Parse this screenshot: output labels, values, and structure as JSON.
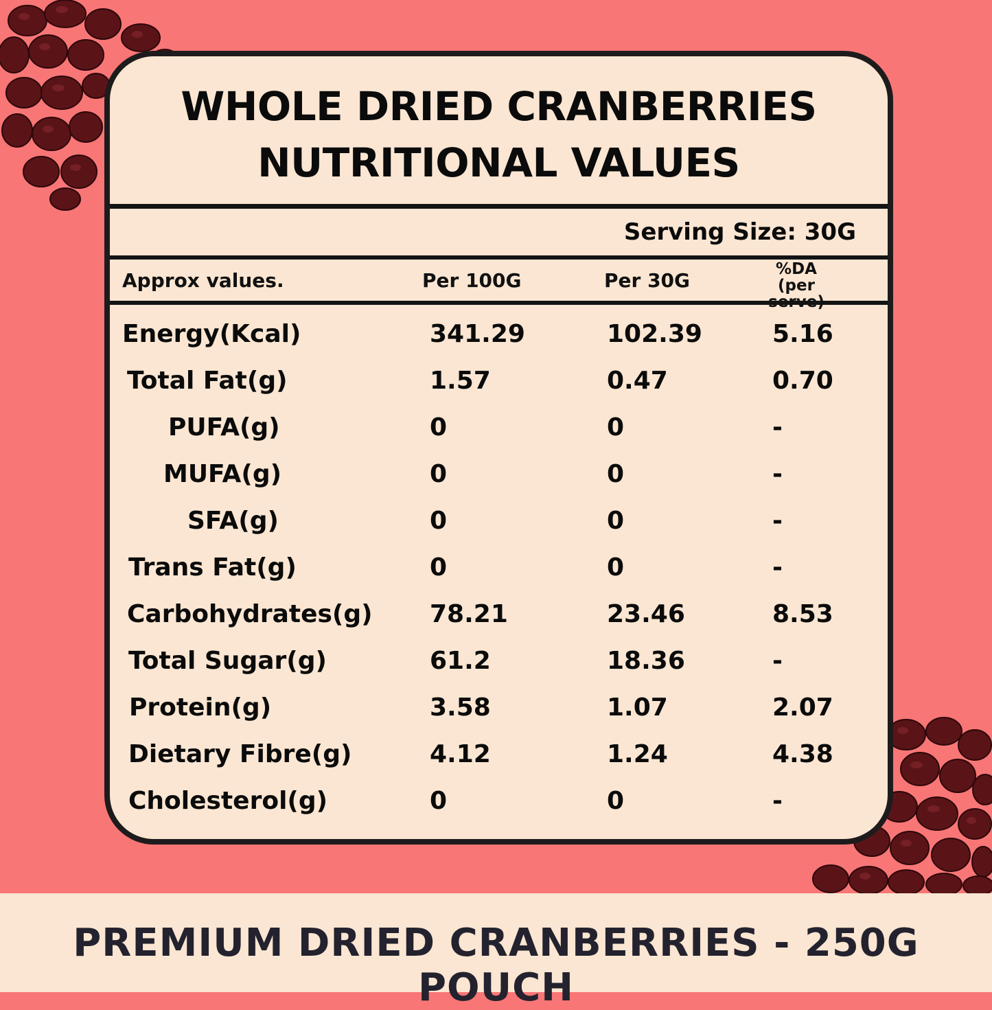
{
  "card": {
    "title_line1": "WHOLE DRIED CRANBERRIES",
    "title_line2": "NUTRITIONAL VALUES",
    "serving_size": "Serving Size: 30G",
    "columns": {
      "label": "Approx values.",
      "per100": "Per 100G",
      "per30": "Per 30G",
      "da_line1": "%DA",
      "da_line2": "(per serve)"
    },
    "rows": [
      {
        "label": "Energy(Kcal)",
        "per100": "341.29",
        "per30": "102.39",
        "da": "5.16"
      },
      {
        "label": "Total Fat(g)",
        "per100": "1.57",
        "per30": "0.47",
        "da": "0.70"
      },
      {
        "label": "PUFA(g)",
        "per100": "0",
        "per30": "0",
        "da": "-"
      },
      {
        "label": "MUFA(g)",
        "per100": "0",
        "per30": "0",
        "da": "-"
      },
      {
        "label": "SFA(g)",
        "per100": "0",
        "per30": "0",
        "da": "-"
      },
      {
        "label": "Trans Fat(g)",
        "per100": "0",
        "per30": "0",
        "da": "-"
      },
      {
        "label": "Carbohydrates(g)",
        "per100": "78.21",
        "per30": "23.46",
        "da": "8.53"
      },
      {
        "label": "Total Sugar(g)",
        "per100": "61.2",
        "per30": "18.36",
        "da": "-"
      },
      {
        "label": "Protein(g)",
        "per100": "3.58",
        "per30": "1.07",
        "da": "2.07"
      },
      {
        "label": "Dietary Fibre(g)",
        "per100": "4.12",
        "per30": "1.24",
        "da": "4.38"
      },
      {
        "label": "Cholesterol(g)",
        "per100": "0",
        "per30": "0",
        "da": "-"
      }
    ]
  },
  "footer": {
    "text": "PREMIUM DRIED CRANBERRIES - 250G POUCH"
  },
  "colors": {
    "background": "#f87676",
    "card": "#fae6d2",
    "border": "#1e1b1c",
    "berry": "#5a1418"
  }
}
